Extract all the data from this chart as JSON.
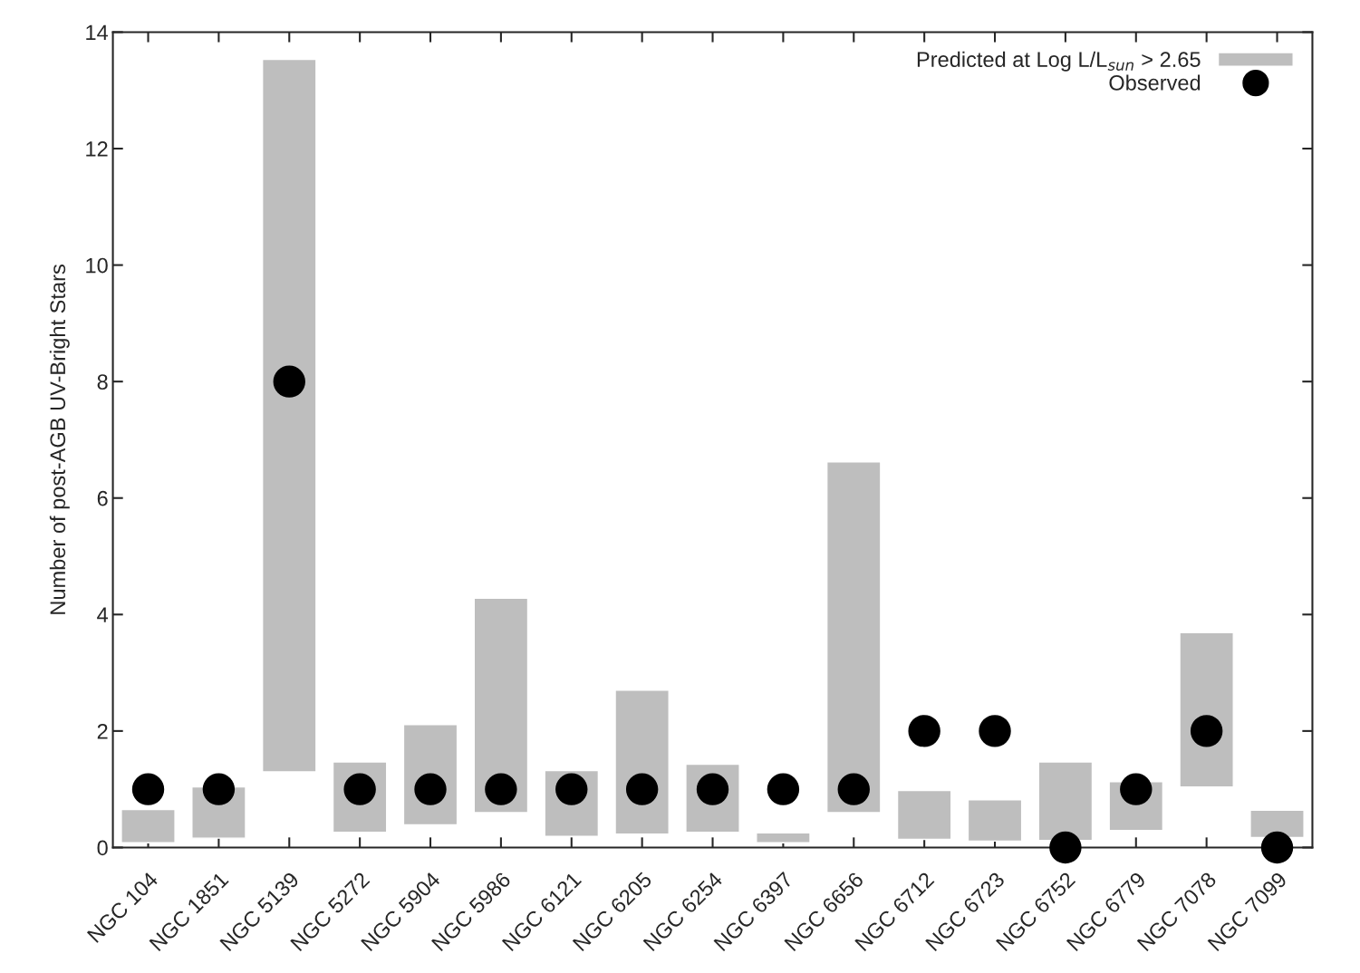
{
  "chart_data": {
    "type": "bar",
    "ylabel": "Number of post-AGB UV-Bright Stars",
    "categories": [
      "NGC 104",
      "NGC 1851",
      "NGC 5139",
      "NGC 5272",
      "NGC 5904",
      "NGC 5986",
      "NGC 6121",
      "NGC 6205",
      "NGC 6254",
      "NGC 6397",
      "NGC 6656",
      "NGC 6712",
      "NGC 6723",
      "NGC 6752",
      "NGC 6779",
      "NGC 7078",
      "NGC 7099"
    ],
    "series": [
      {
        "name": "Predicted at Log L/L$_{sun}$ > 2.65",
        "color": "#bebebe",
        "base": [
          0.08,
          0.16,
          1.3,
          0.26,
          0.39,
          0.6,
          0.19,
          0.23,
          0.26,
          0.08,
          0.6,
          0.14,
          0.11,
          0.12,
          0.29,
          1.04,
          0.17
        ],
        "values": [
          0.57,
          0.88,
          12.23,
          1.21,
          1.72,
          3.68,
          1.13,
          2.47,
          1.17,
          0.17,
          6.02,
          0.84,
          0.71,
          1.35,
          0.84,
          2.65,
          0.47
        ]
      },
      {
        "name": "Observed",
        "type": "scatter",
        "color": "#000000",
        "marker": "circle",
        "values": [
          1,
          1,
          8,
          1,
          1,
          1,
          1,
          1,
          1,
          1,
          1,
          2,
          2,
          0,
          1,
          2,
          0
        ]
      }
    ],
    "ylim": [
      0,
      14
    ],
    "yticks": [
      0,
      2,
      4,
      6,
      8,
      10,
      12,
      14
    ],
    "grid": false,
    "legend": "top right"
  }
}
